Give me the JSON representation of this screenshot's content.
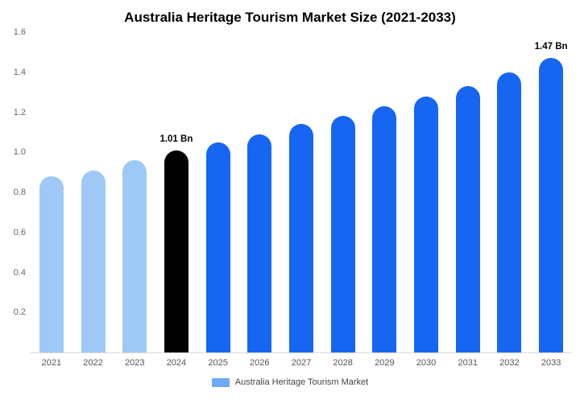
{
  "chart_data": {
    "type": "bar",
    "title": "Australia Heritage Tourism Market Size (2021-2033)",
    "categories": [
      "2021",
      "2022",
      "2023",
      "2024",
      "2025",
      "2026",
      "2027",
      "2028",
      "2029",
      "2030",
      "2031",
      "2032",
      "2033"
    ],
    "values": [
      0.88,
      0.91,
      0.96,
      1.01,
      1.05,
      1.09,
      1.14,
      1.18,
      1.23,
      1.28,
      1.33,
      1.4,
      1.47
    ],
    "unit": "Bn",
    "colors": [
      "#9ec9f6",
      "#9ec9f6",
      "#9ec9f6",
      "#000000",
      "#1766f2",
      "#1766f2",
      "#1766f2",
      "#1766f2",
      "#1766f2",
      "#1766f2",
      "#1766f2",
      "#1766f2",
      "#1766f2"
    ],
    "annotations": [
      {
        "index": 3,
        "text": "1.01 Bn"
      },
      {
        "index": 12,
        "text": "1.47 Bn"
      }
    ],
    "xlabel": "",
    "ylabel": "",
    "ylim": [
      0,
      1.6
    ],
    "yticks": [
      "0.2",
      "0.4",
      "0.6",
      "0.8",
      "1.0",
      "1.2",
      "1.4",
      "1.6"
    ],
    "grid": false,
    "legend": {
      "position": "bottom",
      "label": "Australia Heritage Tourism Market",
      "marker_color": "#6fa8f5"
    },
    "axis_line_color": "#d9d9d9"
  }
}
